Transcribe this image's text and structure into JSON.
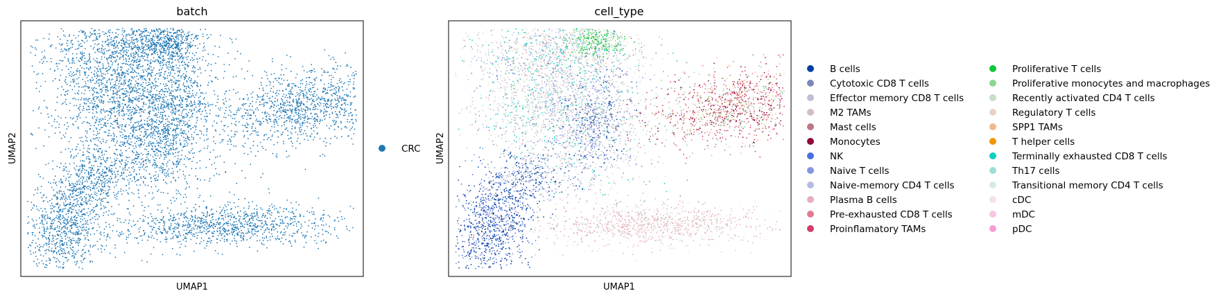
{
  "chart_data": [
    {
      "type": "scatter",
      "title": "batch",
      "xlabel": "UMAP1",
      "ylabel": "UMAP2",
      "grid": false,
      "legend_position": "right",
      "legend": [
        {
          "label": "CRC",
          "color": "#1f77b4"
        }
      ]
    },
    {
      "type": "scatter",
      "title": "cell_type",
      "xlabel": "UMAP1",
      "ylabel": "UMAP2",
      "grid": false,
      "legend_position": "right",
      "legend": [
        {
          "label": "B cells",
          "color": "#023fa5"
        },
        {
          "label": "Cytotoxic CD8 T cells",
          "color": "#7d87b9"
        },
        {
          "label": "Effector memory CD8 T cells",
          "color": "#bec1d4"
        },
        {
          "label": "M2 TAMs",
          "color": "#d6bcc0"
        },
        {
          "label": "Mast cells",
          "color": "#bb7784"
        },
        {
          "label": "Monocytes",
          "color": "#8e063b"
        },
        {
          "label": "NK",
          "color": "#4a6fe3"
        },
        {
          "label": "Naive T cells",
          "color": "#8595e1"
        },
        {
          "label": "Naive-memory CD4 T cells",
          "color": "#b5bbe3"
        },
        {
          "label": "Plasma B cells",
          "color": "#e6afb9"
        },
        {
          "label": "Pre-exhausted CD8 T cells",
          "color": "#e07b91"
        },
        {
          "label": "Proinflamatory TAMs",
          "color": "#d33f6a"
        },
        {
          "label": "Proliferative T cells",
          "color": "#11c638"
        },
        {
          "label": "Proliferative monocytes and macrophages",
          "color": "#8dd593"
        },
        {
          "label": "Recently activated CD4 T cells",
          "color": "#c6dec7"
        },
        {
          "label": "Regulatory T cells",
          "color": "#ead3c6"
        },
        {
          "label": "SPP1 TAMs",
          "color": "#f0b98d"
        },
        {
          "label": "T helper cells",
          "color": "#ef9708"
        },
        {
          "label": "Terminally exhausted CD8 T cells",
          "color": "#0fcfc0"
        },
        {
          "label": "Th17 cells",
          "color": "#9cded6"
        },
        {
          "label": "Transitional memory CD4 T cells",
          "color": "#d5eae7"
        },
        {
          "label": "cDC",
          "color": "#f3e1eb"
        },
        {
          "label": "mDC",
          "color": "#f6c4e1"
        },
        {
          "label": "pDC",
          "color": "#f79cd4"
        }
      ]
    }
  ]
}
